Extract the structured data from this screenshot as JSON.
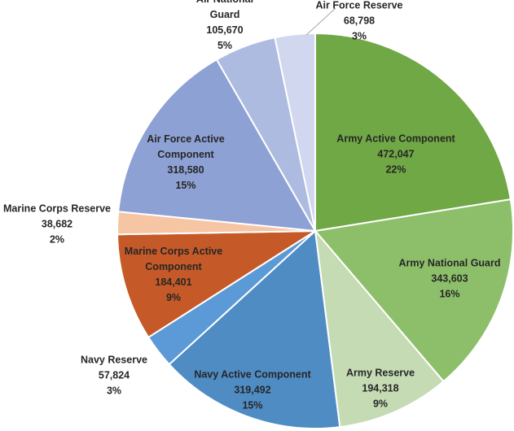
{
  "chart_data": {
    "type": "pie",
    "categories": [
      "Army Active Component",
      "Army National Guard",
      "Army Reserve",
      "Navy Active Component",
      "Navy Reserve",
      "Marine Corps Active Component",
      "Marine Corps Reserve",
      "Air Force Active Component",
      "Air National Guard",
      "Air Force Reserve"
    ],
    "values": [
      472047,
      343603,
      194318,
      319492,
      57824,
      184401,
      38682,
      318580,
      105670,
      68798
    ],
    "value_labels": [
      "472,047",
      "343,603",
      "194,318",
      "319,492",
      "57,824",
      "184,401",
      "38,682",
      "318,580",
      "105,670",
      "68,798"
    ],
    "percent_labels": [
      "22%",
      "16%",
      "9%",
      "15%",
      "3%",
      "9%",
      "2%",
      "15%",
      "5%",
      "3%"
    ],
    "colors": [
      "#70a845",
      "#8dbf6a",
      "#c5dbb4",
      "#4f8cc4",
      "#5b9ad6",
      "#c55a28",
      "#f6c5a4",
      "#8ea1d4",
      "#aebbe0",
      "#d0d7ee"
    ]
  }
}
